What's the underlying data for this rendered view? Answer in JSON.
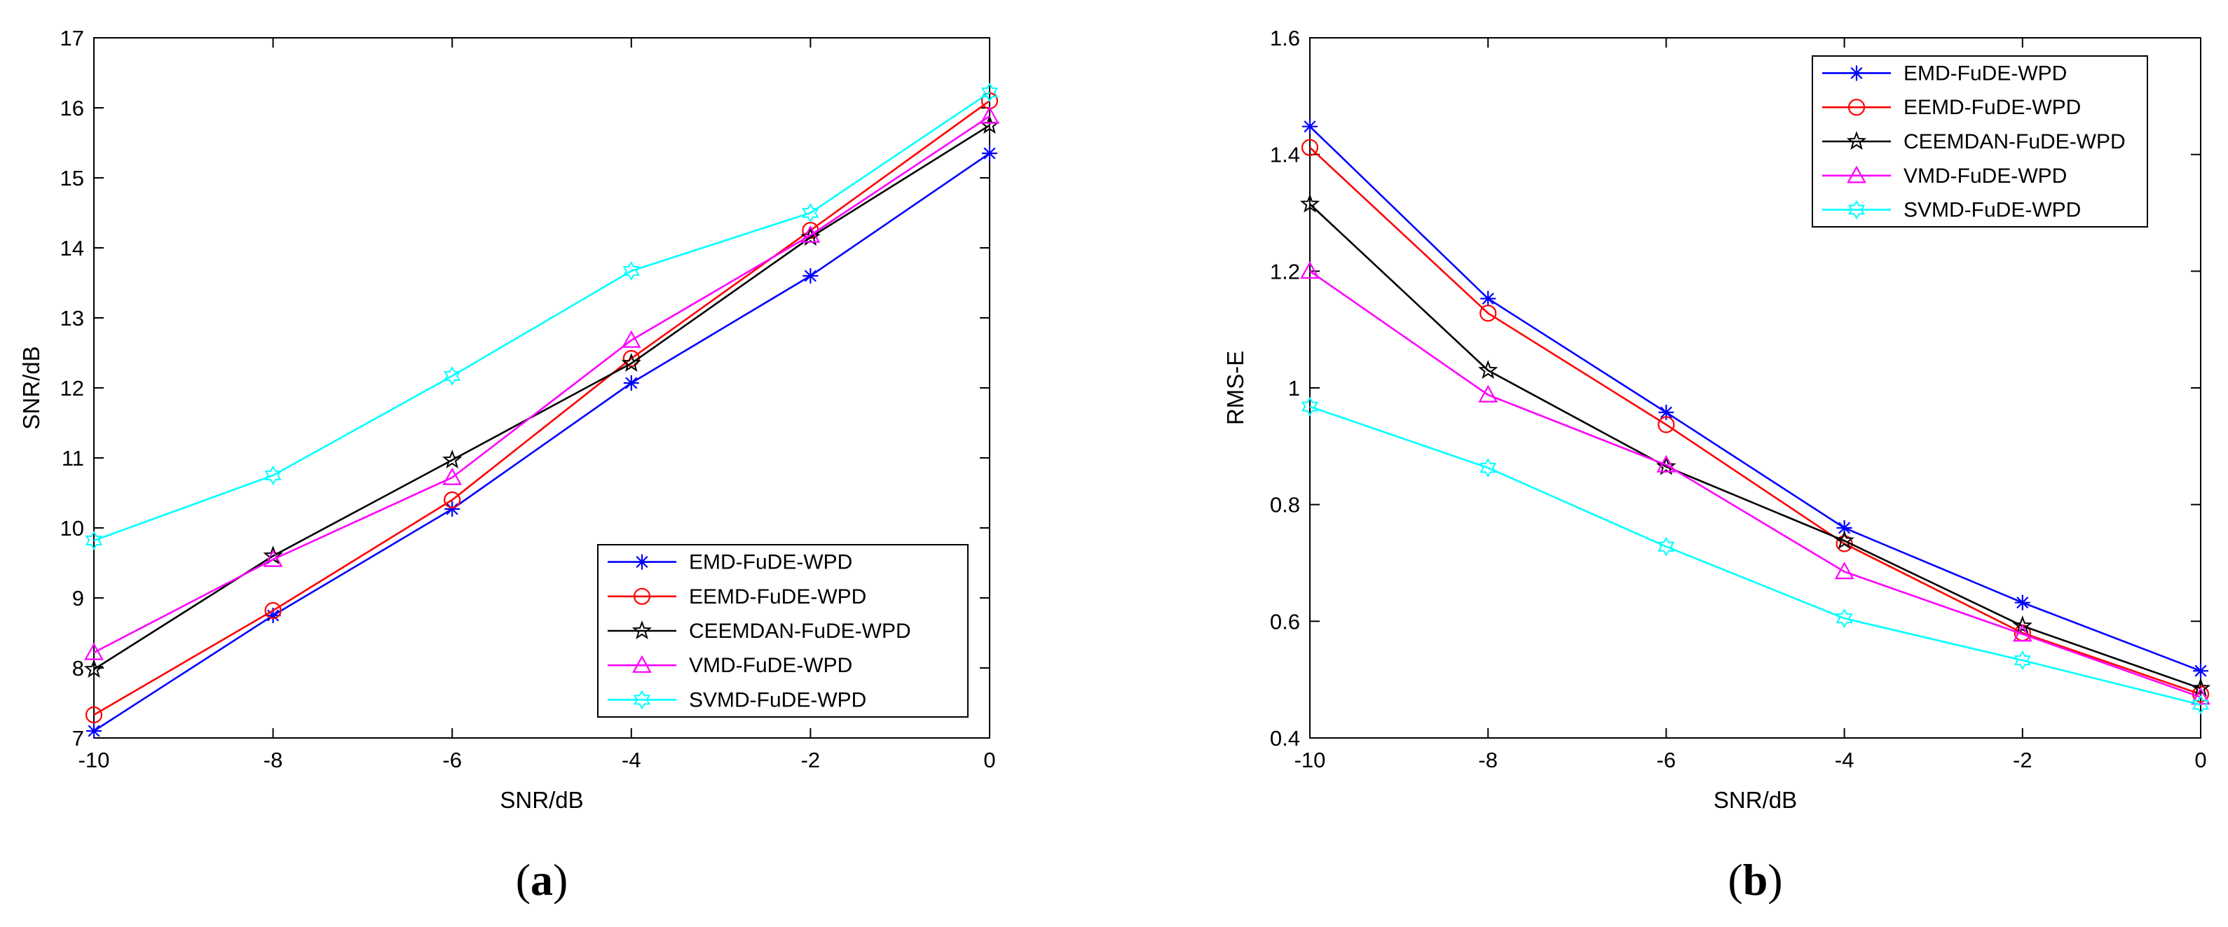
{
  "colors": {
    "EMD-FuDE-WPD": "#0000ff",
    "EEMD-FuDE-WPD": "#ff0000",
    "CEEMDAN-FuDE-WPD": "#000000",
    "VMD-FuDE-WPD": "#ff00ff",
    "SVMD-FuDE-WPD": "#00ffff"
  },
  "chart_data": [
    {
      "type": "line",
      "panel": "a",
      "caption": {
        "open": "(",
        "letter": "a",
        "close": ")"
      },
      "xlabel": "SNR/dB",
      "ylabel": "SNR/dB",
      "x": [
        -10,
        -8,
        -6,
        -4,
        -2,
        0
      ],
      "xlim": [
        -10,
        0
      ],
      "ylim": [
        7,
        17
      ],
      "xticks": [
        "-10",
        "-8",
        "-6",
        "-4",
        "-2",
        "0"
      ],
      "yticks": [
        "7",
        "8",
        "9",
        "10",
        "11",
        "12",
        "13",
        "14",
        "15",
        "16",
        "17"
      ],
      "legend_position": "bottom-right",
      "series": [
        {
          "name": "EMD-FuDE-WPD",
          "marker": "asterisk",
          "values": [
            7.1,
            8.75,
            10.27,
            12.07,
            13.6,
            15.35
          ]
        },
        {
          "name": "EEMD-FuDE-WPD",
          "marker": "circle",
          "values": [
            7.33,
            8.82,
            10.4,
            12.42,
            14.25,
            16.1
          ]
        },
        {
          "name": "CEEMDAN-FuDE-WPD",
          "marker": "pentagram",
          "values": [
            7.98,
            9.6,
            10.97,
            12.35,
            14.15,
            15.75
          ]
        },
        {
          "name": "VMD-FuDE-WPD",
          "marker": "triangle",
          "values": [
            8.22,
            9.55,
            10.72,
            12.68,
            14.18,
            15.88
          ]
        },
        {
          "name": "SVMD-FuDE-WPD",
          "marker": "hexagram",
          "values": [
            9.82,
            10.75,
            12.17,
            13.67,
            14.5,
            16.22
          ]
        }
      ]
    },
    {
      "type": "line",
      "panel": "b",
      "caption": {
        "open": "(",
        "letter": "b",
        "close": ")"
      },
      "xlabel": "SNR/dB",
      "ylabel": "RMS-E",
      "x": [
        -10,
        -8,
        -6,
        -4,
        -2,
        0
      ],
      "xlim": [
        -10,
        0
      ],
      "ylim": [
        0.4,
        1.6
      ],
      "xticks": [
        "-10",
        "-8",
        "-6",
        "-4",
        "-2",
        "0"
      ],
      "yticks": [
        "0.4",
        "0.6",
        "0.8",
        "1",
        "1.2",
        "1.4",
        "1.6"
      ],
      "legend_position": "top-right",
      "series": [
        {
          "name": "EMD-FuDE-WPD",
          "marker": "asterisk",
          "values": [
            1.448,
            1.153,
            0.958,
            0.76,
            0.632,
            0.515
          ]
        },
        {
          "name": "EEMD-FuDE-WPD",
          "marker": "circle",
          "values": [
            1.412,
            1.128,
            0.937,
            0.733,
            0.58,
            0.475
          ]
        },
        {
          "name": "CEEMDAN-FuDE-WPD",
          "marker": "pentagram",
          "values": [
            1.315,
            1.03,
            0.865,
            0.738,
            0.592,
            0.485
          ]
        },
        {
          "name": "VMD-FuDE-WPD",
          "marker": "triangle",
          "values": [
            1.2,
            0.988,
            0.868,
            0.685,
            0.578,
            0.47
          ]
        },
        {
          "name": "SVMD-FuDE-WPD",
          "marker": "hexagram",
          "values": [
            0.968,
            0.863,
            0.728,
            0.605,
            0.533,
            0.457
          ]
        }
      ]
    }
  ]
}
